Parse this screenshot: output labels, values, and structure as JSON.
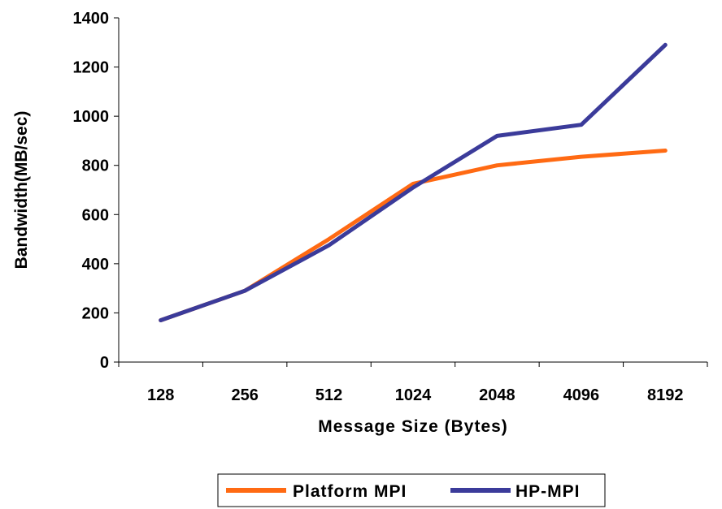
{
  "chart_data": {
    "type": "line",
    "title": "",
    "xlabel": "Message Size (Bytes)",
    "ylabel": "Bandwidth(MB/sec)",
    "categories": [
      "128",
      "256",
      "512",
      "1024",
      "2048",
      "4096",
      "8192"
    ],
    "ylim": [
      0,
      1400
    ],
    "yticks": [
      0,
      200,
      400,
      600,
      800,
      1000,
      1200,
      1400
    ],
    "grid": false,
    "legend_position": "bottom",
    "series": [
      {
        "name": "Platform MPI",
        "color": "#FF6A13",
        "values": [
          170,
          290,
          500,
          725,
          800,
          835,
          860
        ]
      },
      {
        "name": "HP-MPI",
        "color": "#3B3B9A",
        "values": [
          170,
          290,
          475,
          710,
          920,
          965,
          1290
        ]
      }
    ]
  }
}
